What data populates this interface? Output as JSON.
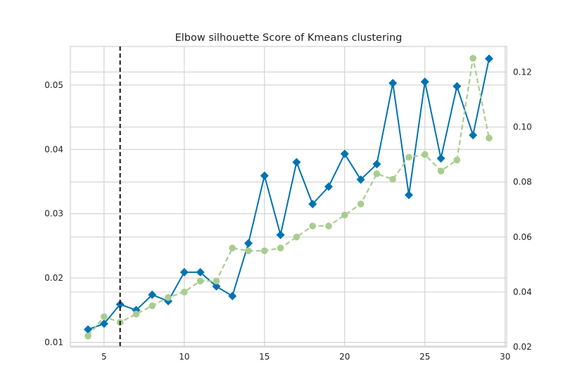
{
  "chart_data": {
    "type": "line",
    "title": "Elbow silhouette Score of Kmeans clustering",
    "xlabel": "",
    "ylabel": "",
    "ylabel_right": "",
    "xlim": [
      2.9,
      30.1
    ],
    "ylim": [
      0.0094,
      0.056
    ],
    "ylim_right": [
      0.0203,
      0.1293
    ],
    "x_ticks": [
      5,
      10,
      15,
      20,
      25,
      30
    ],
    "y_ticks": [
      0.01,
      0.02,
      0.03,
      0.04,
      0.05
    ],
    "y_ticks_right": [
      0.02,
      0.04,
      0.06,
      0.08,
      0.1,
      0.12
    ],
    "y_tick_labels": [
      "0.01",
      "0.02",
      "0.03",
      "0.04",
      "0.05"
    ],
    "y_tick_labels_right": [
      "0.02",
      "0.04",
      "0.06",
      "0.08",
      "0.10",
      "0.12"
    ],
    "grid": true,
    "elbow_x": 6,
    "series": [
      {
        "axis": "left",
        "marker": "diamond",
        "style": "solid",
        "color": "#0072b2",
        "x": [
          4,
          5,
          6,
          7,
          8,
          9,
          10,
          11,
          12,
          13,
          14,
          15,
          16,
          17,
          18,
          19,
          20,
          21,
          22,
          23,
          24,
          25,
          26,
          27,
          28,
          29
        ],
        "values": [
          0.012,
          0.0129,
          0.0159,
          0.015,
          0.0174,
          0.0164,
          0.0209,
          0.0209,
          0.0187,
          0.0172,
          0.0254,
          0.0359,
          0.0267,
          0.038,
          0.0315,
          0.0342,
          0.0393,
          0.0353,
          0.0377,
          0.0503,
          0.0329,
          0.0505,
          0.0386,
          0.0498,
          0.0422,
          0.0541
        ]
      },
      {
        "axis": "right",
        "marker": "circle",
        "style": "dashed",
        "color": "#a8cd8f",
        "x": [
          4,
          5,
          6,
          7,
          8,
          9,
          10,
          11,
          12,
          13,
          14,
          15,
          16,
          17,
          18,
          19,
          20,
          21,
          22,
          23,
          24,
          25,
          26,
          27,
          28,
          29
        ],
        "values": [
          0.024,
          0.031,
          0.029,
          0.032,
          0.035,
          0.038,
          0.04,
          0.044,
          0.044,
          0.056,
          0.055,
          0.055,
          0.056,
          0.06,
          0.064,
          0.064,
          0.068,
          0.072,
          0.083,
          0.081,
          0.089,
          0.09,
          0.084,
          0.088,
          0.125,
          0.096
        ]
      }
    ]
  }
}
